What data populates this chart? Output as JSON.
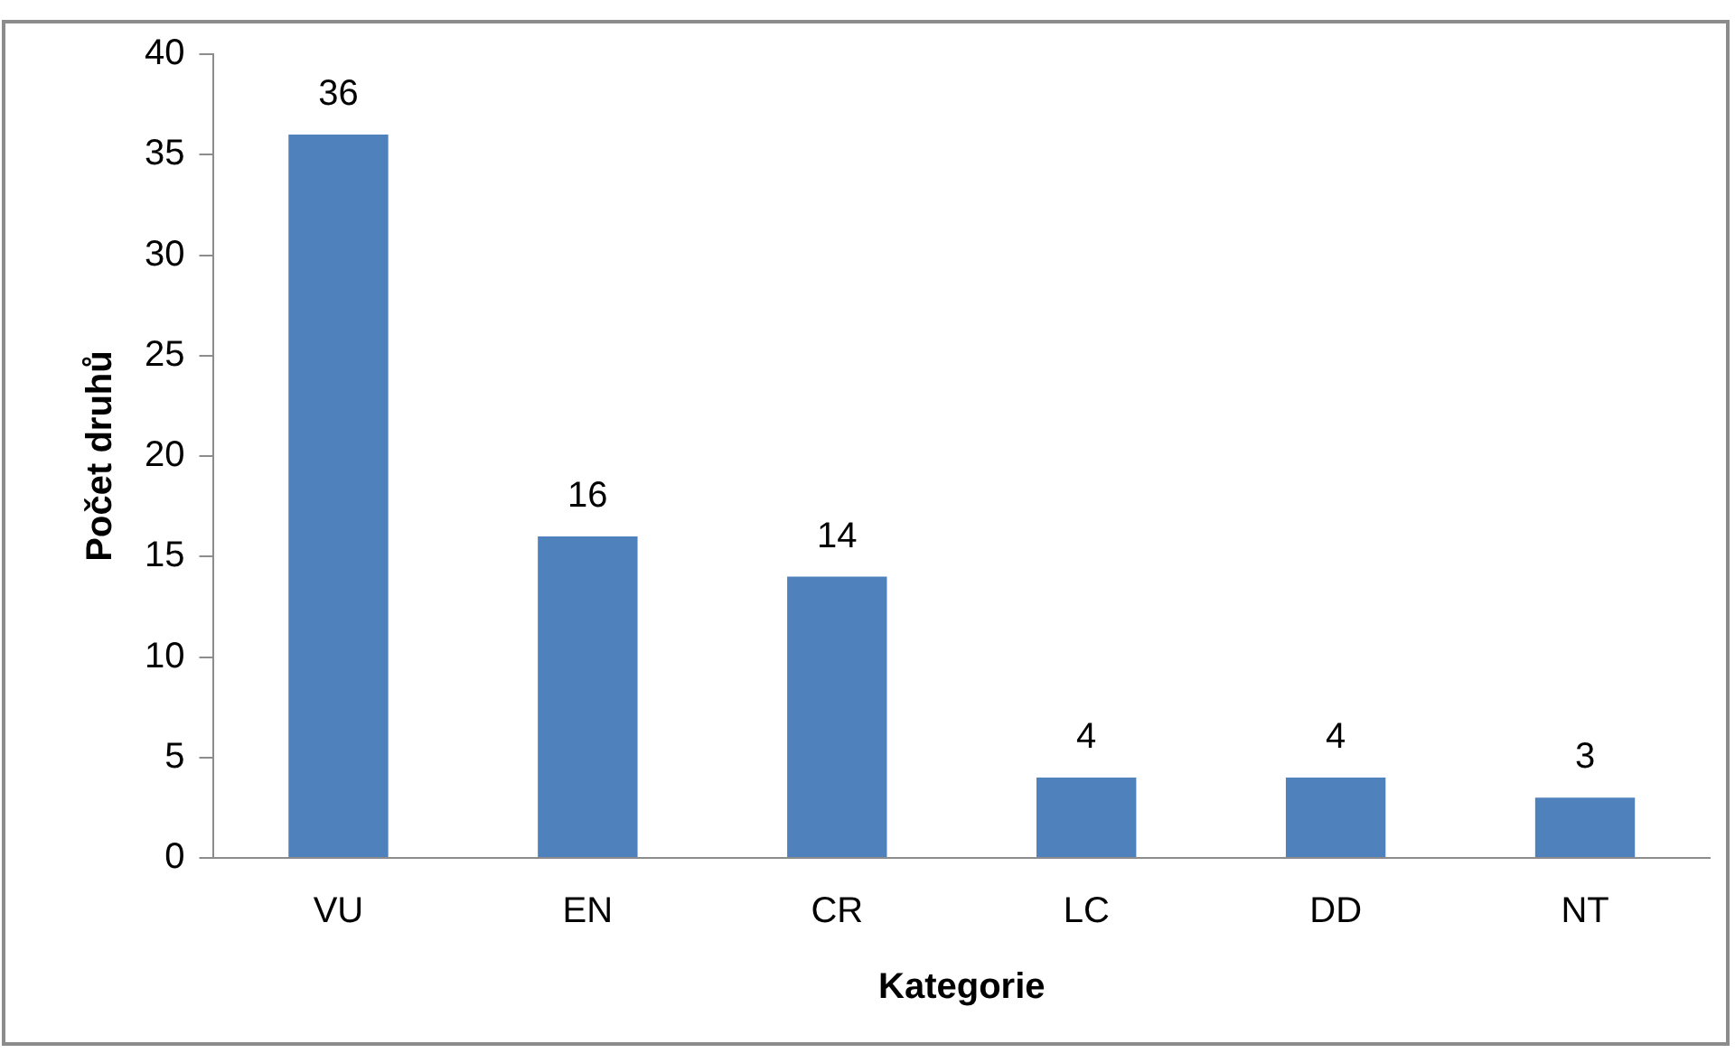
{
  "chart_data": {
    "type": "bar",
    "xlabel": "Kategorie",
    "ylabel": "Počet druhů",
    "categories": [
      "VU",
      "EN",
      "CR",
      "LC",
      "DD",
      "NT"
    ],
    "values": [
      36,
      16,
      14,
      4,
      4,
      3
    ],
    "color": "#4f81bd",
    "ylim": [
      0,
      40
    ],
    "yticks": [
      0,
      5,
      10,
      15,
      20,
      25,
      30,
      35,
      40
    ],
    "grid": false,
    "legend": false,
    "data_labels": true
  }
}
